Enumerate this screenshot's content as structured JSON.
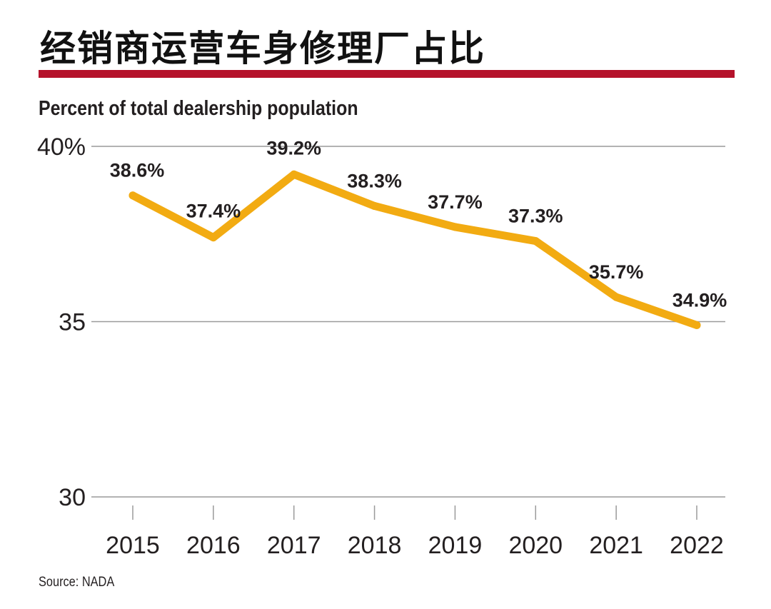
{
  "title": "经销商运营车身修理厂占比",
  "subtitle": "Percent of total dealership population",
  "source": "Source: NADA",
  "colors": {
    "line": "#f2ab12",
    "rule": "#b5122b",
    "grid": "#9a9a9a"
  },
  "chart_data": {
    "type": "line",
    "title": "经销商运营车身修理厂占比",
    "ylabel": "Percent of total dealership population",
    "xlabel": "",
    "categories": [
      "2015",
      "2016",
      "2017",
      "2018",
      "2019",
      "2020",
      "2021",
      "2022"
    ],
    "series": [
      {
        "values": [
          38.6,
          37.4,
          39.2,
          38.3,
          37.7,
          37.3,
          35.7,
          34.9
        ]
      }
    ],
    "data_labels": [
      "38.6%",
      "37.4%",
      "39.2%",
      "38.3%",
      "37.7%",
      "37.3%",
      "35.7%",
      "34.9%"
    ],
    "y_ticks": [
      {
        "value": 40,
        "label": "40%"
      },
      {
        "value": 35,
        "label": "35"
      },
      {
        "value": 30,
        "label": "30"
      }
    ],
    "ylim": [
      30,
      40
    ],
    "grid": true
  }
}
